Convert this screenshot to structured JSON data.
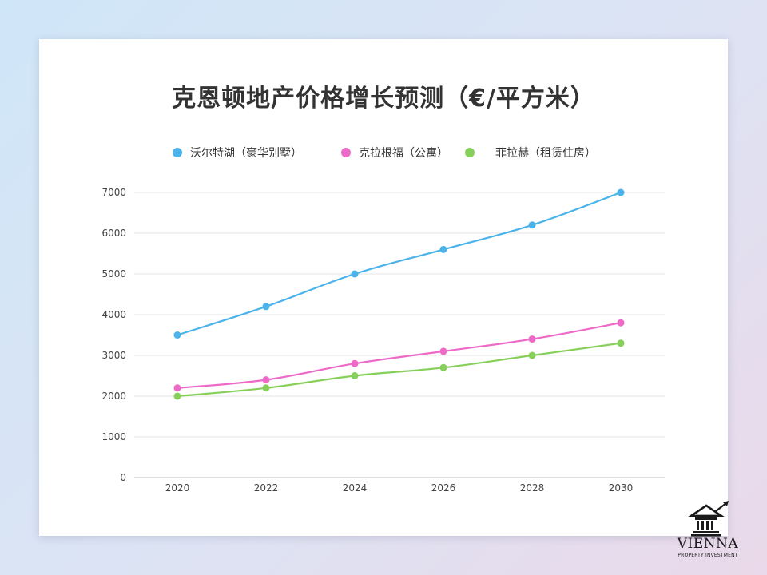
{
  "chart_data": {
    "type": "line",
    "title": "克恩顿地产价格增长预测（€/平方米）",
    "x": [
      "2020",
      "2022",
      "2024",
      "2026",
      "2028",
      "2030"
    ],
    "y_ticks": [
      "0",
      "1000",
      "2000",
      "3000",
      "4000",
      "5000",
      "6000",
      "7000"
    ],
    "ylim": [
      0,
      7000
    ],
    "grid": true,
    "legend_position": "top",
    "series": [
      {
        "name": "沃尔特湖（豪华别墅）",
        "color": "#4ab3ea",
        "values": [
          3500,
          4200,
          5000,
          5600,
          6200,
          7000
        ]
      },
      {
        "name": "克拉根福（公寓）",
        "color": "#ee6ac8",
        "values": [
          2200,
          2400,
          2800,
          3100,
          3400,
          3800
        ]
      },
      {
        "name": "菲拉赫（租赁住房）",
        "color": "#86d05a",
        "values": [
          2000,
          2200,
          2500,
          2700,
          3000,
          3300
        ]
      }
    ]
  },
  "logo": {
    "name": "VIENNA",
    "subtitle": "PROPERTY INVESTMENT",
    "icon": "bank-building-growth-icon"
  }
}
